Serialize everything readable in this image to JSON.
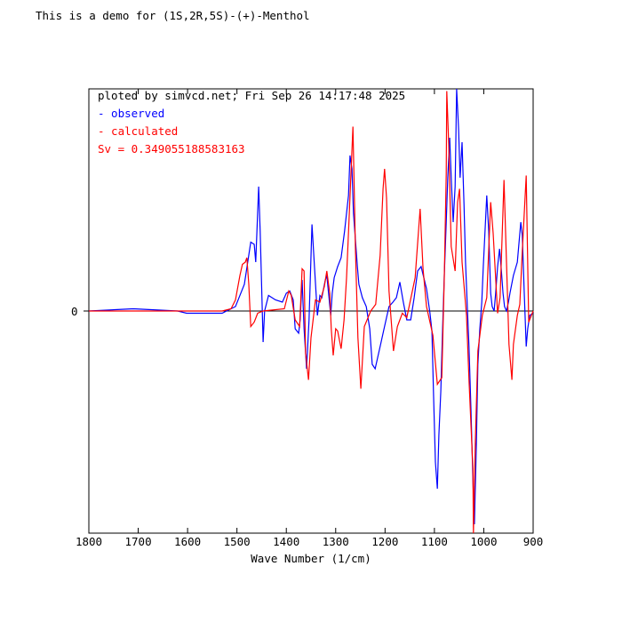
{
  "chart_data": {
    "type": "line",
    "title": "This is a demo for (1S,2R,5S)-(+)-Menthol",
    "xlabel": "Wave Number (1/cm)",
    "ylabel": "",
    "xlim": [
      1800,
      900
    ],
    "ylim": [
      -1,
      1
    ],
    "x_ticks": [
      1800,
      1700,
      1600,
      1500,
      1400,
      1300,
      1200,
      1100,
      1000,
      900
    ],
    "y_tick_labels": [
      "0"
    ],
    "grid": false,
    "legend_placement": "top-left",
    "annotations": {
      "header": "ploted by simvcd.net; Fri Sep 26 14:17:48 2025",
      "sv": "Sv = 0.349055188583163"
    },
    "colors": {
      "observed": "#0000ff",
      "calculated": "#ff0000",
      "axis": "#000000"
    },
    "series": [
      {
        "name": "observed",
        "legend": "- observed",
        "color": "#0000ff",
        "x": [
          1800,
          1710,
          1620,
          1602,
          1530,
          1503,
          1485,
          1472,
          1465,
          1462,
          1456,
          1453,
          1447,
          1444,
          1436,
          1422,
          1408,
          1400,
          1393,
          1386,
          1382,
          1375,
          1372,
          1368,
          1364,
          1359,
          1354,
          1348,
          1343,
          1337,
          1332,
          1328,
          1321,
          1318,
          1310,
          1307,
          1303,
          1296,
          1289,
          1282,
          1274,
          1271,
          1267,
          1264,
          1256,
          1253,
          1246,
          1238,
          1231,
          1226,
          1220,
          1210,
          1202,
          1197,
          1192,
          1184,
          1177,
          1170,
          1163,
          1156,
          1148,
          1141,
          1134,
          1127,
          1116,
          1109,
          1105,
          1102,
          1098,
          1094,
          1091,
          1087,
          1084,
          1080,
          1076,
          1073,
          1069,
          1066,
          1062,
          1058,
          1055,
          1051,
          1048,
          1044,
          1040,
          1037,
          1033,
          1030,
          1026,
          1022,
          1019,
          1015,
          1012,
          1008,
          1004,
          1001,
          997,
          994,
          990,
          986,
          983,
          979,
          976,
          972,
          968,
          965,
          961,
          958,
          954,
          950,
          947,
          940,
          932,
          925,
          922,
          918,
          914,
          911,
          907,
          900
        ],
        "y": [
          0,
          0.01,
          0,
          -0.01,
          -0.01,
          0.02,
          0.12,
          0.31,
          0.3,
          0.22,
          0.56,
          0.36,
          -0.14,
          0,
          0.07,
          0.05,
          0.04,
          0.08,
          0.09,
          0.05,
          -0.08,
          -0.1,
          -0.04,
          0.14,
          -0.08,
          -0.26,
          -0.04,
          0.39,
          0.2,
          -0.02,
          0.07,
          0.06,
          0.14,
          0.16,
          -0.02,
          0.08,
          0.15,
          0.2,
          0.24,
          0.36,
          0.52,
          0.7,
          0.64,
          0.44,
          0.2,
          0.12,
          0.06,
          0.02,
          -0.08,
          -0.24,
          -0.26,
          -0.16,
          -0.08,
          -0.03,
          0.02,
          0.04,
          0.06,
          0.13,
          0.04,
          -0.04,
          -0.04,
          0.06,
          0.18,
          0.2,
          0.1,
          -0.01,
          -0.09,
          -0.36,
          -0.68,
          -0.8,
          -0.56,
          -0.36,
          -0.12,
          0.16,
          0.4,
          0.6,
          0.78,
          0.6,
          0.4,
          0.56,
          1.0,
          0.82,
          0.6,
          0.76,
          0.48,
          0.22,
          0,
          -0.16,
          -0.44,
          -0.76,
          -0.96,
          -0.6,
          -0.24,
          -0.08,
          0.04,
          0.2,
          0.38,
          0.52,
          0.36,
          0.08,
          0.02,
          0,
          0.08,
          0.2,
          0.28,
          0.2,
          0.08,
          0.02,
          0,
          0.04,
          0.08,
          0.16,
          0.22,
          0.4,
          0.34,
          0.08,
          -0.16,
          -0.08,
          -0.02,
          -0.01
        ]
      },
      {
        "name": "calculated",
        "legend": "- calculated",
        "color": "#ff0000",
        "x": [
          1800,
          1530,
          1512,
          1503,
          1494,
          1489,
          1483,
          1480,
          1476,
          1472,
          1465,
          1458,
          1447,
          1404,
          1395,
          1390,
          1382,
          1373,
          1368,
          1364,
          1361,
          1355,
          1350,
          1341,
          1332,
          1323,
          1318,
          1312,
          1309,
          1305,
          1300,
          1296,
          1289,
          1283,
          1278,
          1273,
          1265,
          1260,
          1255,
          1249,
          1242,
          1229,
          1219,
          1210,
          1204,
          1201,
          1197,
          1192,
          1183,
          1175,
          1165,
          1156,
          1139,
          1129,
          1123,
          1116,
          1103,
          1094,
          1085,
          1080,
          1076,
          1075,
          1071,
          1066,
          1058,
          1053,
          1049,
          1044,
          1035,
          1030,
          1022,
          1021,
          1017,
          1012,
          1003,
          994,
          986,
          981,
          972,
          967,
          959,
          954,
          949,
          943,
          940,
          932,
          927,
          922,
          914,
          909,
          900
        ],
        "y": [
          0,
          0,
          0.01,
          0.05,
          0.16,
          0.21,
          0.22,
          0.24,
          0.12,
          -0.07,
          -0.05,
          -0.01,
          0,
          0.01,
          0.09,
          0.07,
          -0.04,
          -0.07,
          0.19,
          0.18,
          -0.19,
          -0.31,
          -0.12,
          0.05,
          0.04,
          0.11,
          0.18,
          0.08,
          -0.08,
          -0.2,
          -0.08,
          -0.09,
          -0.17,
          -0.04,
          0.15,
          0.41,
          0.83,
          0.28,
          -0.12,
          -0.35,
          -0.07,
          0,
          0.03,
          0.25,
          0.55,
          0.64,
          0.51,
          0.09,
          -0.18,
          -0.07,
          -0.01,
          -0.03,
          0.15,
          0.46,
          0.19,
          0.02,
          -0.11,
          -0.33,
          -0.3,
          0.15,
          0.62,
          0.99,
          0.75,
          0.29,
          0.18,
          0.49,
          0.55,
          0.22,
          -0.02,
          -0.31,
          -0.71,
          -1.0,
          -0.58,
          -0.18,
          -0.02,
          0.06,
          0.49,
          0.35,
          -0.01,
          0.06,
          0.59,
          0.22,
          -0.15,
          -0.31,
          -0.15,
          -0.02,
          0.03,
          0.27,
          0.61,
          -0.05,
          0
        ]
      }
    ]
  }
}
